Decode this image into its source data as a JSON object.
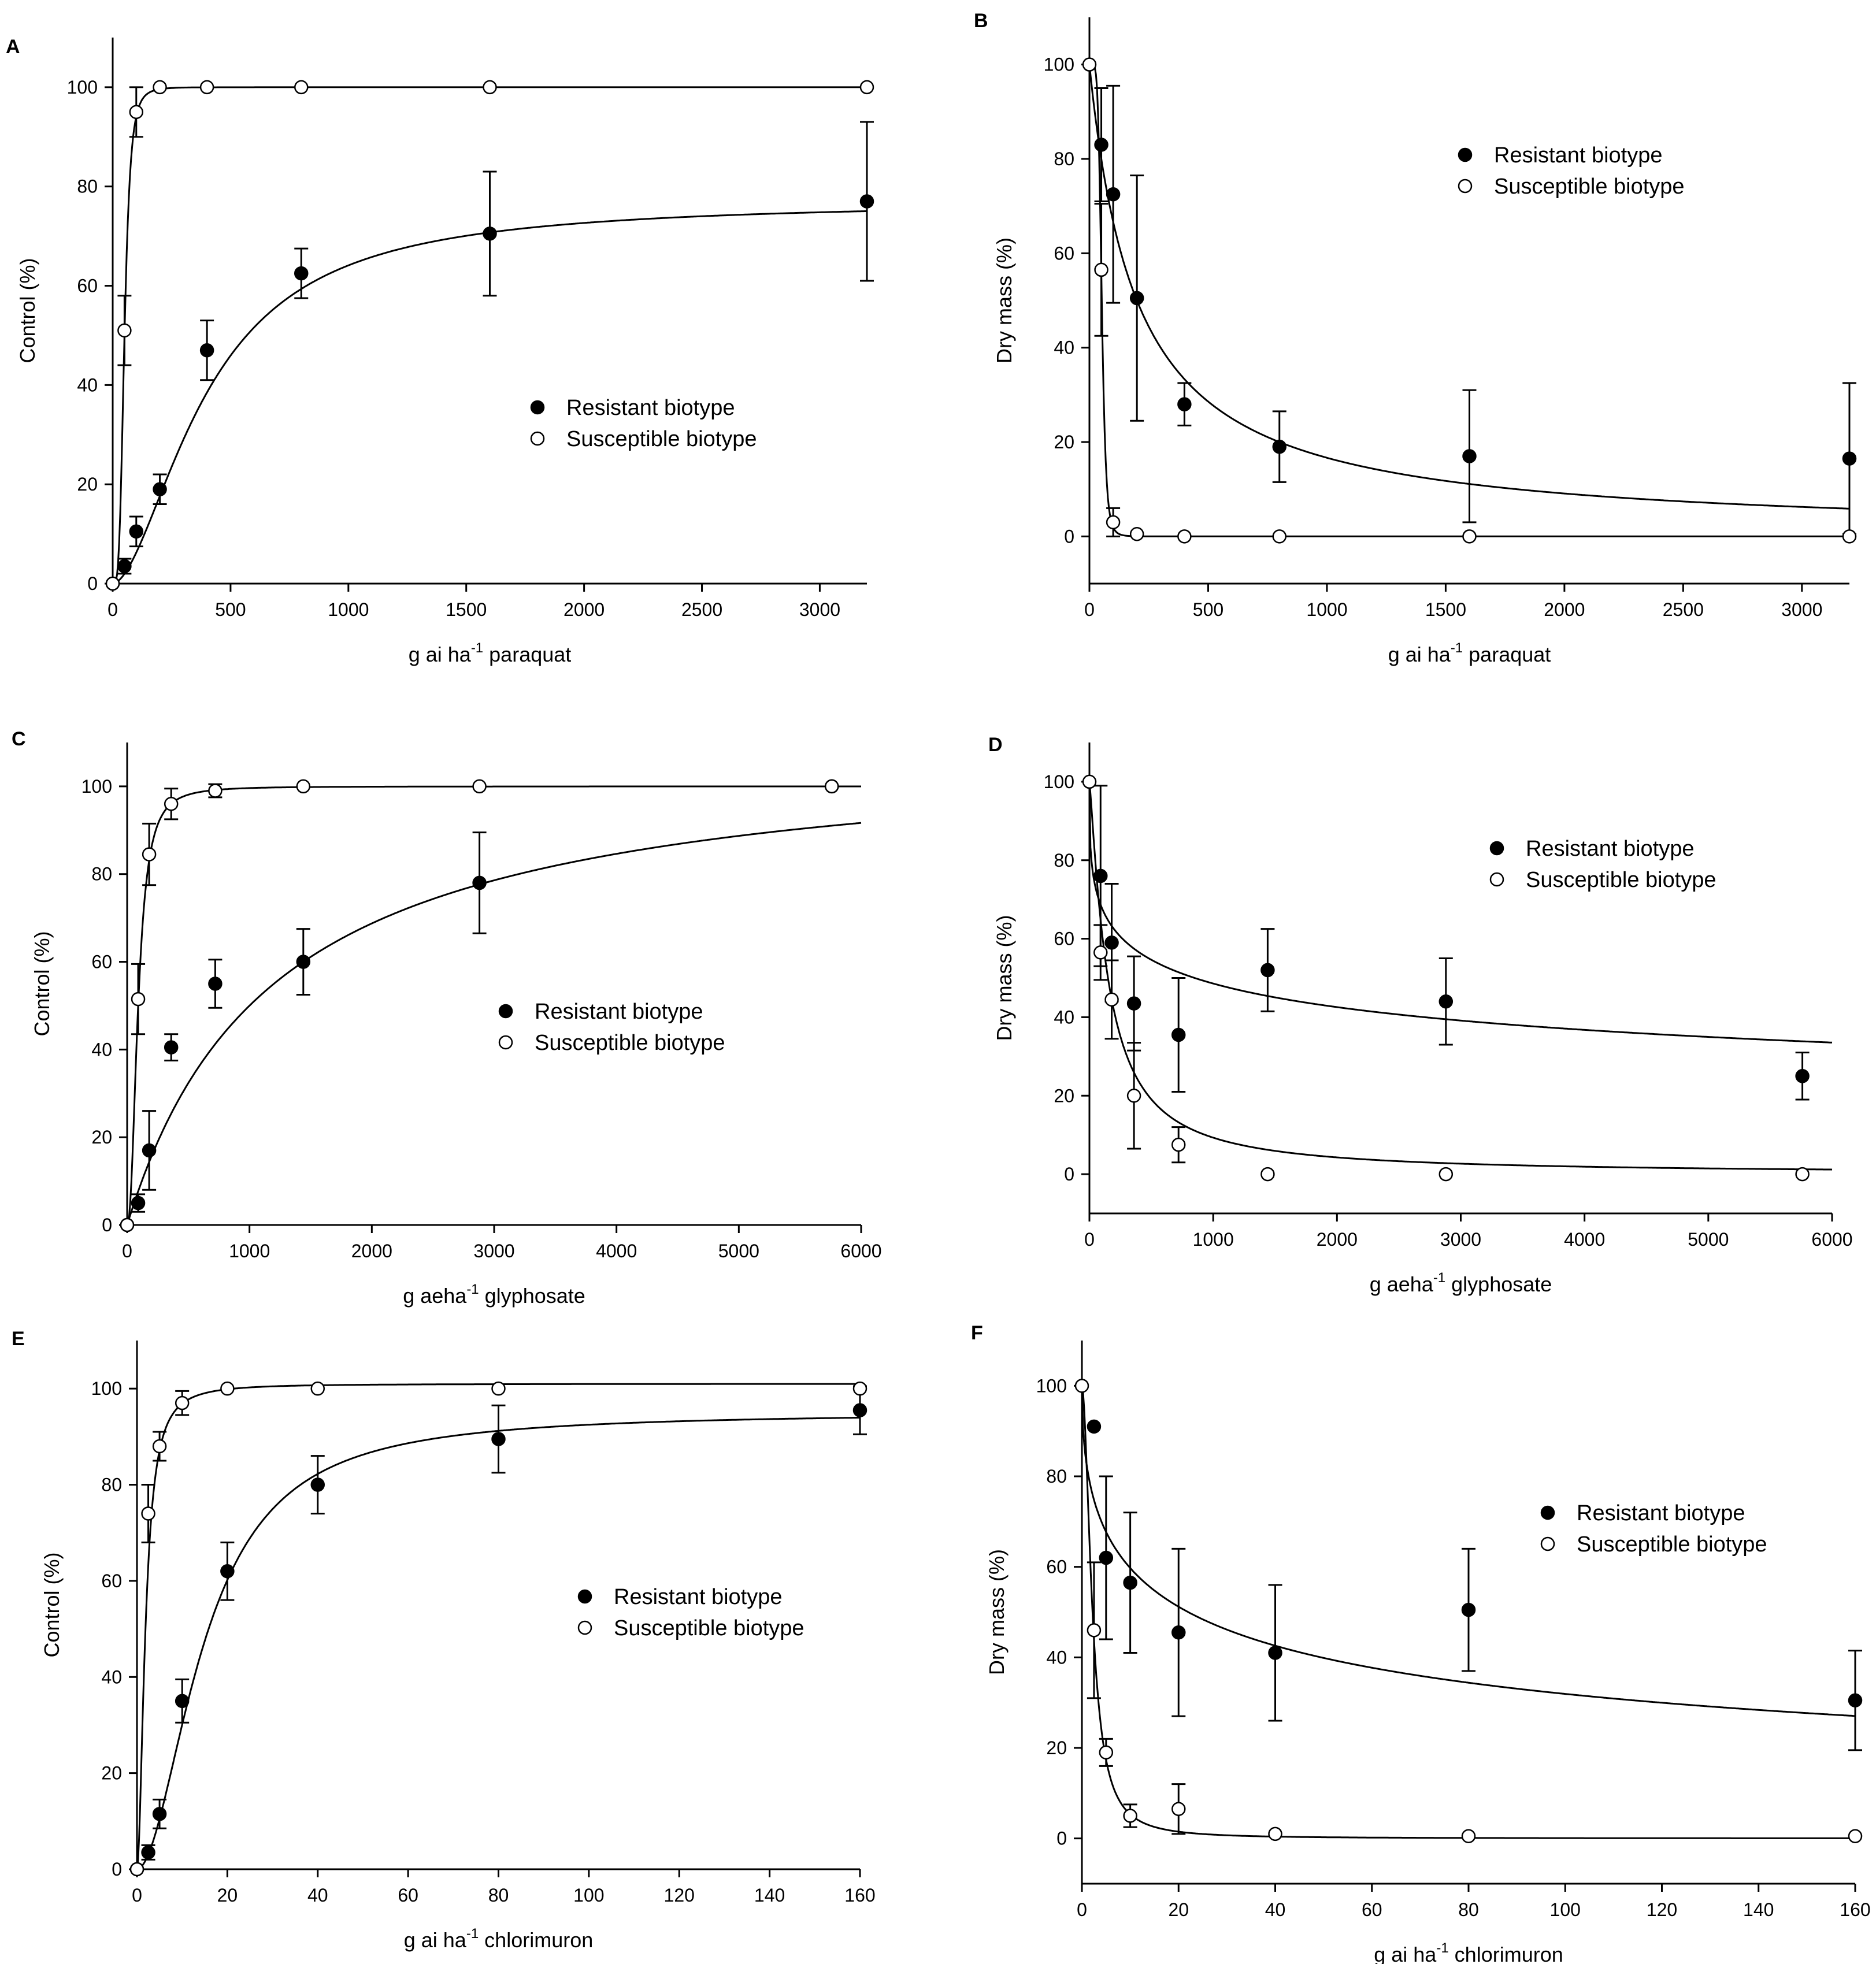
{
  "chart_data": [
    {
      "panel": "A",
      "type": "scatter",
      "ylabel": "Control (%)",
      "xlabel": "g ai ha",
      "xlabel_sup": "-1",
      "xlabel_suffix": "paraquat",
      "xlim": [
        0,
        3200
      ],
      "ylim": [
        0,
        110
      ],
      "xticks": [
        0,
        500,
        1000,
        1500,
        2000,
        2500,
        3000
      ],
      "yticks": [
        0,
        20,
        40,
        60,
        80,
        100
      ],
      "legend": {
        "position": "center-right",
        "entries": [
          "Resistant biotype",
          "Susceptible biotype"
        ]
      },
      "series": [
        {
          "name": "Resistant biotype",
          "marker": "filled",
          "x": [
            0,
            50,
            100,
            200,
            400,
            800,
            1600,
            3200
          ],
          "y": [
            0,
            3.5,
            10.5,
            19,
            47,
            62.5,
            70.5,
            77
          ],
          "err": [
            0,
            1.5,
            3,
            3,
            6,
            5,
            12.5,
            16
          ],
          "curve": {
            "model": "logistic",
            "top": 77,
            "ec50": 400,
            "slope": 1.75
          }
        },
        {
          "name": "Susceptible biotype",
          "marker": "open",
          "x": [
            0,
            50,
            100,
            200,
            400,
            800,
            1600,
            3200
          ],
          "y": [
            0,
            51,
            95,
            100,
            100,
            100,
            100,
            100
          ],
          "err": [
            0,
            7,
            5,
            0,
            0,
            0,
            0,
            0
          ],
          "curve": {
            "model": "logistic",
            "top": 100,
            "ec50": 50,
            "slope": 4
          }
        }
      ]
    },
    {
      "panel": "B",
      "type": "scatter",
      "ylabel": "Dry mass (%)",
      "xlabel": "g ai ha",
      "xlabel_sup": "-1",
      "xlabel_suffix": "paraquat",
      "xlim": [
        0,
        3200
      ],
      "ylim": [
        -10,
        110
      ],
      "xticks": [
        0,
        500,
        1000,
        1500,
        2000,
        2500,
        3000
      ],
      "yticks": [
        0,
        20,
        40,
        60,
        80,
        100
      ],
      "legend": {
        "position": "top-right",
        "entries": [
          "Resistant biotype",
          "Susceptible biotype"
        ]
      },
      "series": [
        {
          "name": "Resistant biotype",
          "marker": "filled",
          "x": [
            50,
            100,
            200,
            400,
            800,
            1600,
            3200
          ],
          "y": [
            83,
            72.5,
            50.5,
            28,
            19,
            17,
            16.5
          ],
          "err": [
            12,
            23,
            26,
            4.5,
            7.5,
            14,
            16
          ],
          "curve": {
            "model": "decay",
            "top": 100,
            "ec50": 200,
            "slope": 1
          }
        },
        {
          "name": "Susceptible biotype",
          "marker": "open",
          "x": [
            0,
            50,
            100,
            200,
            400,
            800,
            1600,
            3200
          ],
          "y": [
            100,
            56.5,
            3,
            0.5,
            0,
            0,
            0,
            0
          ],
          "err": [
            0,
            14,
            3,
            0,
            0,
            0,
            0,
            0
          ],
          "curve": {
            "model": "decay",
            "top": 100,
            "ec50": 52,
            "slope": 6
          }
        }
      ]
    },
    {
      "panel": "C",
      "type": "scatter",
      "ylabel": "Control (%)",
      "xlabel": "g aeha",
      "xlabel_sup": "-1",
      "xlabel_suffix": "glyphosate",
      "xlim": [
        0,
        6000
      ],
      "ylim": [
        0,
        110
      ],
      "xticks": [
        0,
        1000,
        2000,
        3000,
        4000,
        5000,
        6000
      ],
      "yticks": [
        0,
        20,
        40,
        60,
        80,
        100
      ],
      "legend": {
        "position": "center-right",
        "entries": [
          "Resistant biotype",
          "Susceptible biotype"
        ]
      },
      "series": [
        {
          "name": "Resistant biotype",
          "marker": "filled",
          "x": [
            0,
            90,
            180,
            360,
            720,
            1440,
            2880,
            5760
          ],
          "y": [
            0,
            5,
            17,
            40.5,
            55,
            60,
            78,
            100
          ],
          "err": [
            0,
            2,
            9,
            3,
            5.5,
            7.5,
            11.5,
            0
          ],
          "curve": {
            "model": "logistic",
            "top": 110,
            "ec50": 1200,
            "slope": 1
          }
        },
        {
          "name": "Susceptible biotype",
          "marker": "open",
          "x": [
            0,
            90,
            180,
            360,
            720,
            1440,
            2880,
            5760
          ],
          "y": [
            0,
            51.5,
            84.5,
            96,
            99,
            100,
            100,
            100
          ],
          "err": [
            0,
            8,
            7,
            3.5,
            1.5,
            0,
            0,
            0
          ],
          "curve": {
            "model": "logistic",
            "top": 100,
            "ec50": 90,
            "slope": 2.3
          }
        }
      ]
    },
    {
      "panel": "D",
      "type": "scatter",
      "ylabel": "Dry mass (%)",
      "xlabel": "g aeha",
      "xlabel_sup": "-1",
      "xlabel_suffix": "glyphosate",
      "xlim": [
        0,
        6000
      ],
      "ylim": [
        -10,
        110
      ],
      "xticks": [
        0,
        1000,
        2000,
        3000,
        4000,
        5000,
        6000
      ],
      "yticks": [
        0,
        20,
        40,
        60,
        80,
        100
      ],
      "legend": {
        "position": "top-right",
        "entries": [
          "Resistant biotype",
          "Susceptible biotype"
        ]
      },
      "series": [
        {
          "name": "Resistant biotype",
          "marker": "filled",
          "x": [
            90,
            180,
            360,
            720,
            1440,
            2880,
            5760
          ],
          "y": [
            76,
            59,
            43.5,
            35.5,
            52,
            44,
            25
          ],
          "err": [
            23,
            15,
            12,
            14.5,
            10.5,
            11,
            6
          ],
          "curve": {
            "model": "decay",
            "top": 100,
            "ec50": 850,
            "slope": 0.35
          }
        },
        {
          "name": "Susceptible biotype",
          "marker": "open",
          "x": [
            0,
            90,
            180,
            360,
            720,
            1440,
            2880,
            5760
          ],
          "y": [
            100,
            56.5,
            44.5,
            20,
            7.5,
            0,
            0,
            0
          ],
          "err": [
            0,
            7,
            10,
            13.5,
            4.5,
            0,
            0,
            0
          ],
          "curve": {
            "model": "decay",
            "top": 100,
            "ec50": 150,
            "slope": 1.2
          }
        }
      ]
    },
    {
      "panel": "E",
      "type": "scatter",
      "ylabel": "Control (%)",
      "xlabel": "g ai ha",
      "xlabel_sup": "-1",
      "xlabel_suffix": "chlorimuron",
      "xlim": [
        0,
        160
      ],
      "ylim": [
        0,
        110
      ],
      "xticks": [
        0,
        20,
        40,
        60,
        80,
        100,
        120,
        140,
        160
      ],
      "yticks": [
        0,
        20,
        40,
        60,
        80,
        100
      ],
      "legend": {
        "position": "center-right",
        "entries": [
          "Resistant biotype",
          "Susceptible biotype"
        ]
      },
      "series": [
        {
          "name": "Resistant biotype",
          "marker": "filled",
          "x": [
            0,
            2.5,
            5,
            10,
            20,
            40,
            80,
            160
          ],
          "y": [
            0,
            3.5,
            11.5,
            35,
            62,
            80,
            89.5,
            95.5
          ],
          "err": [
            0,
            1.5,
            3,
            4.5,
            6,
            6,
            7,
            5
          ],
          "curve": {
            "model": "logistic",
            "top": 95,
            "ec50": 15,
            "slope": 1.9
          }
        },
        {
          "name": "Susceptible biotype",
          "marker": "open",
          "x": [
            0,
            2.5,
            5,
            10,
            20,
            40,
            80,
            160
          ],
          "y": [
            0,
            74,
            88,
            97,
            100,
            100,
            100,
            100
          ],
          "err": [
            0,
            6,
            3,
            2.5,
            0,
            0,
            0,
            0
          ],
          "curve": {
            "model": "logistic",
            "top": 101,
            "ec50": 1.9,
            "slope": 1.9
          }
        }
      ]
    },
    {
      "panel": "F",
      "type": "scatter",
      "ylabel": "Dry mass (%)",
      "xlabel": "g ai ha",
      "xlabel_sup": "-1",
      "xlabel_suffix": "chlorimuron",
      "xlim": [
        0,
        160
      ],
      "ylim": [
        -10,
        110
      ],
      "xticks": [
        0,
        20,
        40,
        60,
        80,
        100,
        120,
        140,
        160
      ],
      "yticks": [
        0,
        20,
        40,
        60,
        80,
        100
      ],
      "legend": {
        "position": "top-right",
        "entries": [
          "Resistant biotype",
          "Susceptible biotype"
        ]
      },
      "series": [
        {
          "name": "Resistant biotype",
          "marker": "filled",
          "x": [
            2.5,
            5,
            10,
            20,
            40,
            80,
            160
          ],
          "y": [
            91,
            62,
            56.5,
            45.5,
            41,
            50.5,
            30.5
          ],
          "err": [
            0,
            18,
            15.5,
            18.5,
            15,
            13.5,
            11
          ],
          "curve": {
            "model": "decay",
            "top": 100,
            "ec50": 22,
            "slope": 0.5
          }
        },
        {
          "name": "Susceptible biotype",
          "marker": "open",
          "x": [
            0,
            2.5,
            5,
            10,
            20,
            40,
            80,
            160
          ],
          "y": [
            100,
            46,
            19,
            5,
            6.5,
            1,
            0.5,
            0.5
          ],
          "err": [
            0,
            15,
            3,
            2.5,
            5.5,
            0,
            0,
            0
          ],
          "curve": {
            "model": "decay",
            "top": 100,
            "ec50": 2.2,
            "slope": 1.9
          }
        }
      ]
    }
  ]
}
